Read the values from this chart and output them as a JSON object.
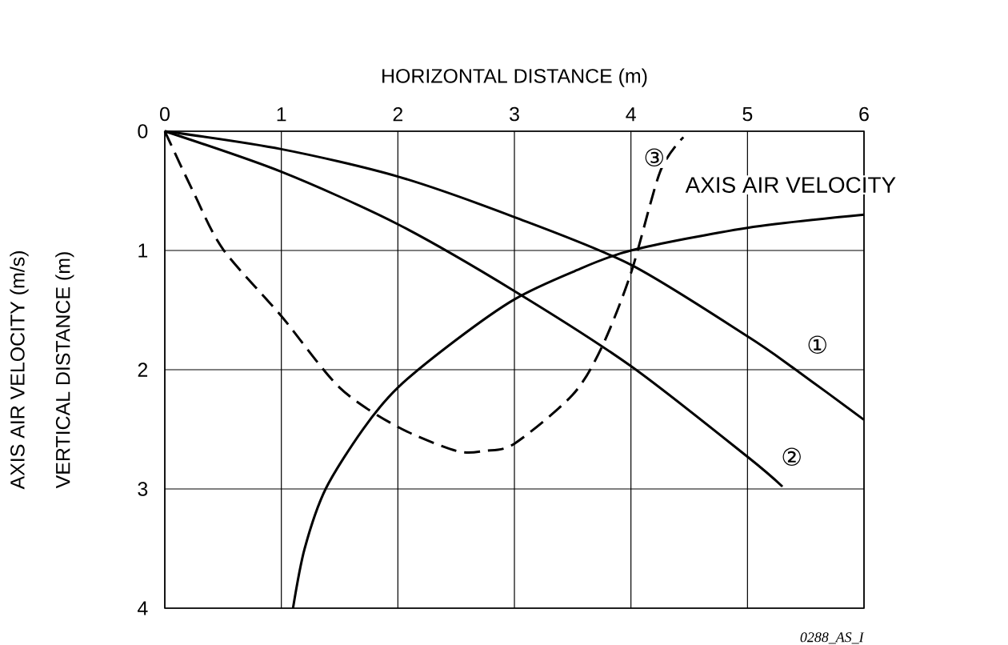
{
  "chart_data": {
    "type": "line",
    "xlabel": "HORIZONTAL DISTANCE (m)",
    "ylabel": "VERTICAL DISTANCE (m)",
    "xlim": [
      0,
      6
    ],
    "ylim": [
      4,
      0
    ],
    "xticks": [
      0,
      1,
      2,
      3,
      4,
      5,
      6
    ],
    "yticks": [
      0,
      1,
      2,
      3,
      4
    ],
    "grid": true,
    "line_style": "solid",
    "series": [
      {
        "name": "①",
        "color": "#000000",
        "x": [
          0,
          1,
          2,
          3,
          4,
          5,
          5.4,
          6
        ],
        "values": [
          0,
          0.15,
          0.38,
          0.72,
          1.12,
          1.72,
          1.99,
          2.42
        ]
      },
      {
        "name": "②",
        "color": "#000000",
        "x": [
          0,
          1,
          2,
          3,
          4,
          5,
          5.3
        ],
        "values": [
          0,
          0.34,
          0.78,
          1.34,
          1.97,
          2.73,
          2.98
        ]
      },
      {
        "name": "③",
        "color": "#000000",
        "line_style": "dashed",
        "x": [
          0,
          0.25,
          0.5,
          1,
          1.5,
          2,
          2.5,
          2.75,
          3,
          3.5,
          3.75,
          4,
          4.25,
          4.45
        ],
        "values": [
          0,
          0.52,
          0.99,
          1.55,
          2.15,
          2.48,
          2.68,
          2.68,
          2.62,
          2.21,
          1.81,
          1.19,
          0.34,
          0.05
        ]
      },
      {
        "name": "AXIS AIR VELOCITY",
        "color": "#000000",
        "x": [
          1.1,
          1.2,
          1.38,
          1.7,
          2,
          2.5,
          3,
          3.5,
          4,
          5,
          6
        ],
        "values": [
          4,
          3.5,
          3,
          2.5,
          2.15,
          1.75,
          1.41,
          1.18,
          1.0,
          0.81,
          0.7
        ]
      }
    ],
    "annotations": [
      "AXIS AIR VELOCITY (m/s)",
      "0288_AS_I"
    ]
  }
}
